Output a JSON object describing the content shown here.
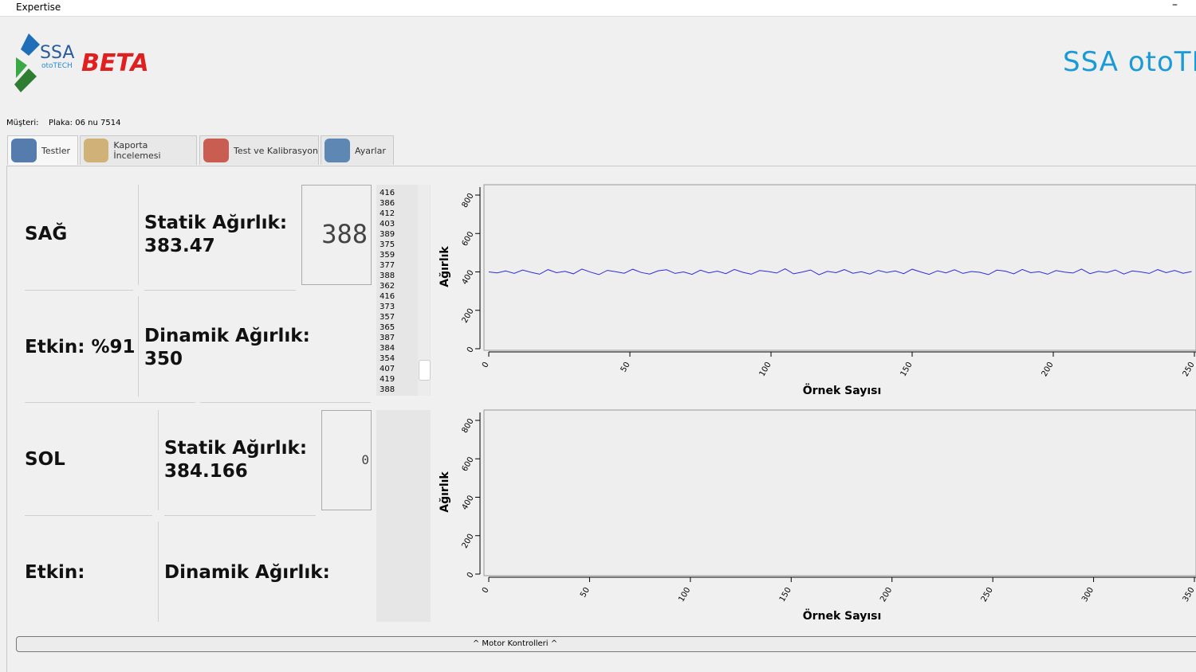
{
  "window": {
    "title": "Expertise"
  },
  "header": {
    "logo_top": "SSA",
    "logo_bottom": "otoTECH",
    "badge": "BETA",
    "brand": "SSA otoTECH"
  },
  "customer": {
    "label": "Müşteri:",
    "plate": "Plaka: 06 nu 7514"
  },
  "tabs": [
    "Testler",
    "Kaporta İncelemesi",
    "Test ve Kalibrasyon",
    "Ayarlar"
  ],
  "right": {
    "side": "SAĞ",
    "static_label": "Statik Ağırlık:",
    "static_value": "383.47",
    "display": "388",
    "efficiency": "Etkin: %91",
    "dynamic_label": "Dinamik Ağırlık:",
    "dynamic_value": "350"
  },
  "left": {
    "side": "SOL",
    "static_label": "Statik Ağırlık:",
    "static_value": "384.166",
    "display": "0",
    "efficiency": "Etkin:",
    "dynamic_label": "Dinamik Ağırlık:"
  },
  "readings": [
    416,
    386,
    412,
    403,
    389,
    375,
    359,
    377,
    388,
    362,
    416,
    373,
    357,
    365,
    387,
    384,
    354,
    407,
    419,
    388
  ],
  "motor_button": "^ Motor Kontrolleri ^",
  "chart_data": [
    {
      "type": "line",
      "y_label": "Ağırlık",
      "x_label": "Örnek Sayısı",
      "xlim": [
        0,
        250
      ],
      "ylim": [
        0,
        800
      ],
      "xticks": [
        0,
        50,
        100,
        150,
        200,
        250
      ],
      "yticks": [
        0,
        200,
        400,
        600,
        800
      ],
      "x": [
        0,
        3,
        6,
        9,
        12,
        15,
        18,
        21,
        24,
        27,
        30,
        33,
        36,
        39,
        42,
        45,
        48,
        51,
        54,
        57,
        60,
        63,
        66,
        69,
        72,
        75,
        78,
        81,
        84,
        87,
        90,
        93,
        96,
        99,
        102,
        105,
        108,
        111,
        114,
        117,
        120,
        123,
        126,
        129,
        132,
        135,
        138,
        141,
        144,
        147,
        150,
        153,
        156,
        159,
        162,
        165,
        168,
        171,
        174,
        177,
        180,
        183,
        186,
        189,
        192,
        195,
        198,
        201,
        204,
        207,
        210,
        213,
        216,
        219,
        222,
        225,
        228,
        231,
        234,
        237,
        240,
        243,
        246,
        249
      ],
      "series": [
        {
          "color": "#2b2bd9",
          "values": [
            400,
            395,
            405,
            392,
            410,
            398,
            388,
            412,
            396,
            403,
            390,
            415,
            399,
            386,
            408,
            401,
            393,
            414,
            397,
            389,
            406,
            411,
            392,
            400,
            387,
            409,
            395,
            404,
            391,
            413,
            398,
            388,
            407,
            402,
            394,
            416,
            390,
            399,
            410,
            385,
            403,
            396,
            412,
            393,
            401,
            389,
            408,
            397,
            405,
            391,
            414,
            400,
            387,
            406,
            395,
            411,
            392,
            402,
            398,
            386,
            409,
            404,
            390,
            413,
            396,
            401,
            388,
            407,
            399,
            394,
            415,
            391,
            403,
            397,
            410,
            389,
            405,
            400,
            392,
            412,
            396,
            408,
            393,
            402
          ]
        }
      ]
    },
    {
      "type": "line",
      "y_label": "Ağırlık",
      "x_label": "Örnek Sayısı",
      "xlim": [
        0,
        350
      ],
      "ylim": [
        0,
        800
      ],
      "xticks": [
        0,
        50,
        100,
        150,
        200,
        250,
        300,
        350
      ],
      "yticks": [
        0,
        200,
        400,
        600,
        800
      ],
      "x": [],
      "series": []
    }
  ]
}
